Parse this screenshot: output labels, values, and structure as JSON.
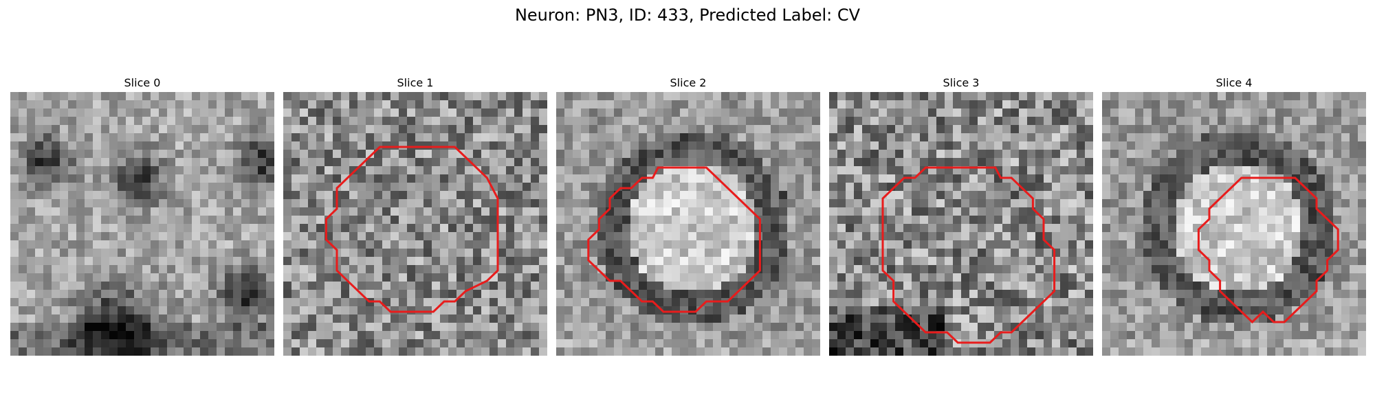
{
  "figure": {
    "title": "Neuron: PN3, ID: 433, Predicted Label: CV"
  },
  "panels": [
    {
      "title": "Slice 0",
      "contour": false,
      "seed": 11,
      "pattern": "dark-blobs"
    },
    {
      "title": "Slice 1",
      "contour": true,
      "seed": 23,
      "pattern": "speckle"
    },
    {
      "title": "Slice 2",
      "contour": true,
      "seed": 37,
      "pattern": "ring-light"
    },
    {
      "title": "Slice 3",
      "contour": true,
      "seed": 53,
      "pattern": "speckle-dark-edges"
    },
    {
      "title": "Slice 4",
      "contour": true,
      "seed": 71,
      "pattern": "ring-light"
    }
  ],
  "colors": {
    "contour": "#e81c1c",
    "background": "#ffffff"
  },
  "image": {
    "grid": 32,
    "colormap": "grayscale"
  }
}
